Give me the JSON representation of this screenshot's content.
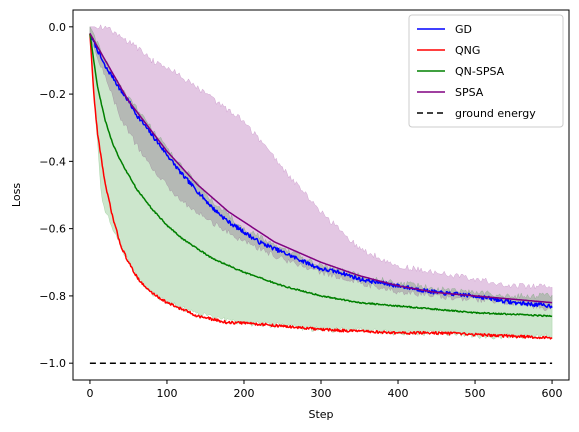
{
  "chart_data": {
    "type": "line",
    "xlabel": "Step",
    "ylabel": "Loss",
    "xlim": [
      -22,
      622
    ],
    "ylim": [
      -1.05,
      0.05
    ],
    "xticks": [
      0,
      100,
      200,
      300,
      400,
      500,
      600
    ],
    "xtick_labels": [
      "0",
      "100",
      "200",
      "300",
      "400",
      "500",
      "600"
    ],
    "yticks": [
      0.0,
      -0.2,
      -0.4,
      -0.6,
      -0.8,
      -1.0
    ],
    "ytick_labels": [
      "0.0",
      "−0.2",
      "−0.4",
      "−0.6",
      "−0.8",
      "−1.0"
    ],
    "grid": false,
    "legend": "upper-right",
    "series": [
      {
        "name": "GD",
        "color": "#0000ff",
        "style": "solid",
        "x": [
          0,
          10,
          20,
          30,
          40,
          50,
          60,
          80,
          100,
          120,
          140,
          160,
          180,
          200,
          220,
          240,
          260,
          280,
          300,
          325,
          350,
          375,
          400,
          450,
          500,
          550,
          600
        ],
        "y": [
          -0.02,
          -0.07,
          -0.12,
          -0.15,
          -0.19,
          -0.22,
          -0.26,
          -0.32,
          -0.38,
          -0.44,
          -0.49,
          -0.54,
          -0.58,
          -0.61,
          -0.64,
          -0.66,
          -0.68,
          -0.7,
          -0.72,
          -0.73,
          -0.75,
          -0.76,
          -0.77,
          -0.79,
          -0.8,
          -0.82,
          -0.83
        ]
      },
      {
        "name": "QNG",
        "color": "#ff0000",
        "style": "solid",
        "x": [
          0,
          5,
          10,
          20,
          30,
          40,
          50,
          60,
          70,
          80,
          100,
          120,
          140,
          160,
          180,
          200,
          250,
          300,
          350,
          400,
          450,
          500,
          550,
          600
        ],
        "y": [
          -0.02,
          -0.2,
          -0.32,
          -0.47,
          -0.57,
          -0.65,
          -0.7,
          -0.74,
          -0.77,
          -0.79,
          -0.82,
          -0.84,
          -0.86,
          -0.87,
          -0.88,
          -0.88,
          -0.89,
          -0.9,
          -0.905,
          -0.91,
          -0.91,
          -0.915,
          -0.92,
          -0.925
        ]
      },
      {
        "name": "QN-SPSA",
        "color": "#008000",
        "style": "solid",
        "x": [
          0,
          5,
          10,
          20,
          30,
          40,
          50,
          60,
          80,
          100,
          120,
          140,
          160,
          180,
          200,
          250,
          300,
          350,
          400,
          450,
          500,
          550,
          600
        ],
        "y": [
          -0.02,
          -0.1,
          -0.18,
          -0.28,
          -0.35,
          -0.4,
          -0.44,
          -0.48,
          -0.54,
          -0.59,
          -0.63,
          -0.66,
          -0.69,
          -0.71,
          -0.73,
          -0.77,
          -0.8,
          -0.82,
          -0.83,
          -0.84,
          -0.85,
          -0.855,
          -0.86
        ]
      },
      {
        "name": "SPSA",
        "color": "#800080",
        "style": "solid",
        "x": [
          0,
          10,
          20,
          30,
          40,
          50,
          60,
          80,
          100,
          120,
          140,
          160,
          180,
          200,
          220,
          240,
          260,
          280,
          300,
          350,
          400,
          450,
          500,
          550,
          600
        ],
        "y": [
          -0.02,
          -0.06,
          -0.1,
          -0.14,
          -0.18,
          -0.22,
          -0.25,
          -0.31,
          -0.37,
          -0.42,
          -0.47,
          -0.51,
          -0.55,
          -0.58,
          -0.61,
          -0.64,
          -0.66,
          -0.68,
          -0.7,
          -0.74,
          -0.77,
          -0.79,
          -0.8,
          -0.81,
          -0.82
        ]
      },
      {
        "name": "ground energy",
        "color": "#000000",
        "style": "dashed",
        "x": [
          0,
          600
        ],
        "y": [
          -1.0,
          -1.0
        ]
      }
    ],
    "bands": [
      {
        "series": "SPSA",
        "color": "#800080",
        "opacity": 0.22,
        "x": [
          0,
          20,
          40,
          60,
          80,
          100,
          120,
          150,
          200,
          250,
          300,
          350,
          400,
          450,
          500,
          550,
          600
        ],
        "lower": [
          -0.03,
          -0.15,
          -0.27,
          -0.35,
          -0.42,
          -0.47,
          -0.52,
          -0.57,
          -0.64,
          -0.69,
          -0.73,
          -0.76,
          -0.79,
          -0.8,
          -0.81,
          -0.82,
          -0.84
        ],
        "upper": [
          0.0,
          0.0,
          -0.03,
          -0.06,
          -0.1,
          -0.12,
          -0.15,
          -0.2,
          -0.28,
          -0.42,
          -0.55,
          -0.66,
          -0.71,
          -0.73,
          -0.75,
          -0.77,
          -0.77
        ]
      },
      {
        "series": "QN-SPSA",
        "color": "#008000",
        "opacity": 0.2,
        "x": [
          0,
          5,
          10,
          15,
          20,
          30,
          40,
          50,
          60,
          80,
          100,
          150,
          200,
          250,
          300,
          350,
          400,
          450,
          500,
          550,
          600
        ],
        "lower": [
          -0.02,
          -0.2,
          -0.35,
          -0.5,
          -0.55,
          -0.6,
          -0.65,
          -0.7,
          -0.74,
          -0.79,
          -0.82,
          -0.86,
          -0.88,
          -0.89,
          -0.9,
          -0.9,
          -0.91,
          -0.91,
          -0.92,
          -0.92,
          -0.92
        ],
        "upper": [
          0.0,
          -0.02,
          -0.05,
          -0.08,
          -0.1,
          -0.14,
          -0.18,
          -0.21,
          -0.24,
          -0.3,
          -0.36,
          -0.5,
          -0.6,
          -0.66,
          -0.71,
          -0.74,
          -0.76,
          -0.78,
          -0.79,
          -0.8,
          -0.8
        ]
      }
    ]
  }
}
